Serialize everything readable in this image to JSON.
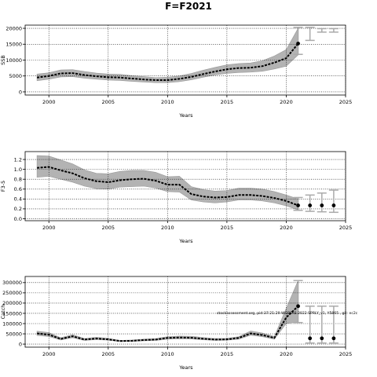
{
  "figure": {
    "title": "F=F2021",
    "note": "stockassessment.org, pid:37:21:29 WGBFAS 2022 SPRLY_v1, Y5865 , git: ec2c"
  },
  "colors": {
    "band": "#b3b3b3",
    "line": "#000000",
    "projection": "#aaaaaa",
    "grid": "#000000"
  },
  "chart_data": [
    {
      "type": "line",
      "title": "",
      "xlabel": "Years",
      "ylabel": "SSB",
      "xlim": [
        1998,
        2025
      ],
      "ylim": [
        -1000,
        21000
      ],
      "xticks": [
        2000,
        2005,
        2010,
        2015,
        2020,
        2025
      ],
      "yticks": [
        0,
        5000,
        10000,
        15000,
        20000
      ],
      "grid": true,
      "series": [
        {
          "x": [
            1999,
            2000,
            2001,
            2002,
            2003,
            2004,
            2005,
            2006,
            2007,
            2008,
            2009,
            2010,
            2011,
            2012,
            2013,
            2014,
            2015,
            2016,
            2017,
            2018,
            2019,
            2020,
            2021
          ],
          "y": [
            4500,
            5000,
            5800,
            5900,
            5300,
            4900,
            4600,
            4500,
            4200,
            3900,
            3700,
            3700,
            4100,
            4700,
            5600,
            6400,
            7100,
            7500,
            7600,
            8100,
            9200,
            10600,
            15200
          ],
          "low": [
            3500,
            4000,
            4700,
            4800,
            4300,
            4000,
            3700,
            3600,
            3300,
            3100,
            2900,
            2900,
            3200,
            3800,
            4600,
            5300,
            5800,
            6100,
            6200,
            6500,
            7200,
            8100,
            11600
          ],
          "high": [
            5600,
            6000,
            6900,
            7000,
            6400,
            5900,
            5600,
            5500,
            5100,
            4800,
            4500,
            4600,
            5000,
            5800,
            6800,
            7700,
            8500,
            8900,
            9100,
            9800,
            11300,
            13300,
            20000
          ]
        }
      ],
      "projection": {
        "x": [
          2021,
          2022,
          2023,
          2024
        ],
        "point_y": [
          15200,
          null,
          null,
          null
        ],
        "low": [
          11800,
          16200,
          18800,
          18800
        ],
        "high": [
          20300,
          20300,
          19900,
          19900
        ]
      }
    },
    {
      "type": "line",
      "title": "",
      "xlabel": "Years",
      "ylabel": "F3-5",
      "xlim": [
        1998,
        2025
      ],
      "ylim": [
        -0.04,
        1.36
      ],
      "xticks": [
        2000,
        2005,
        2010,
        2015,
        2020,
        2025
      ],
      "yticks": [
        0.0,
        0.2,
        0.4,
        0.6,
        0.8,
        1.0,
        1.2
      ],
      "grid": true,
      "series": [
        {
          "x": [
            1999,
            2000,
            2001,
            2002,
            2003,
            2004,
            2005,
            2006,
            2007,
            2008,
            2009,
            2010,
            2011,
            2012,
            2013,
            2014,
            2015,
            2016,
            2017,
            2018,
            2019,
            2020,
            2021
          ],
          "y": [
            1.03,
            1.05,
            0.98,
            0.92,
            0.82,
            0.76,
            0.74,
            0.78,
            0.8,
            0.81,
            0.77,
            0.69,
            0.69,
            0.5,
            0.45,
            0.43,
            0.44,
            0.48,
            0.48,
            0.46,
            0.42,
            0.36,
            0.27
          ],
          "low": [
            0.84,
            0.86,
            0.8,
            0.74,
            0.66,
            0.61,
            0.6,
            0.64,
            0.65,
            0.66,
            0.62,
            0.55,
            0.54,
            0.38,
            0.34,
            0.32,
            0.34,
            0.38,
            0.38,
            0.36,
            0.32,
            0.26,
            0.18
          ],
          "high": [
            1.28,
            1.27,
            1.19,
            1.11,
            0.99,
            0.92,
            0.91,
            0.96,
            0.98,
            0.98,
            0.94,
            0.85,
            0.86,
            0.65,
            0.59,
            0.56,
            0.57,
            0.62,
            0.62,
            0.6,
            0.55,
            0.48,
            0.4
          ]
        }
      ],
      "projection": {
        "x": [
          2021,
          2022,
          2023,
          2024
        ],
        "point_y": [
          0.27,
          0.27,
          0.27,
          0.27
        ],
        "low": [
          0.17,
          0.15,
          0.14,
          0.13
        ],
        "high": [
          0.43,
          0.48,
          0.52,
          0.58
        ]
      }
    },
    {
      "type": "line",
      "title": "",
      "xlabel": "Years",
      "ylabel": "Catch",
      "xlim": [
        1998,
        2025
      ],
      "ylim": [
        -15000,
        330000
      ],
      "xticks": [
        2000,
        2005,
        2010,
        2015,
        2020,
        2025
      ],
      "yticks": [
        0,
        50000,
        100000,
        150000,
        200000,
        250000,
        300000
      ],
      "grid": true,
      "series": [
        {
          "x": [
            1999,
            2000,
            2001,
            2002,
            2003,
            2004,
            2005,
            2006,
            2007,
            2008,
            2009,
            2010,
            2011,
            2012,
            2013,
            2014,
            2015,
            2016,
            2017,
            2018,
            2019,
            2020,
            2021
          ],
          "y": [
            52000,
            46000,
            25000,
            38000,
            22000,
            27000,
            23000,
            15000,
            16000,
            20000,
            22000,
            30000,
            32000,
            31000,
            26000,
            22000,
            23000,
            30000,
            52000,
            44000,
            30000,
            130000,
            185000
          ],
          "low": [
            42000,
            37000,
            20000,
            31000,
            18000,
            22000,
            19000,
            12000,
            13000,
            16000,
            18000,
            24000,
            26000,
            25000,
            21000,
            18000,
            19000,
            24000,
            43000,
            36000,
            24000,
            100000,
            108000
          ],
          "high": [
            63000,
            56000,
            31000,
            46000,
            27000,
            33000,
            28000,
            18000,
            20000,
            24000,
            27000,
            36000,
            39000,
            38000,
            32000,
            27000,
            28000,
            36000,
            64000,
            54000,
            37000,
            175000,
            310000
          ]
        }
      ],
      "projection": {
        "x": [
          2021,
          2022,
          2023,
          2024
        ],
        "point_y": [
          185000,
          28000,
          28000,
          28000
        ],
        "low": [
          105000,
          5000,
          5000,
          5000
        ],
        "high": [
          310000,
          185000,
          185000,
          185000
        ]
      }
    }
  ]
}
